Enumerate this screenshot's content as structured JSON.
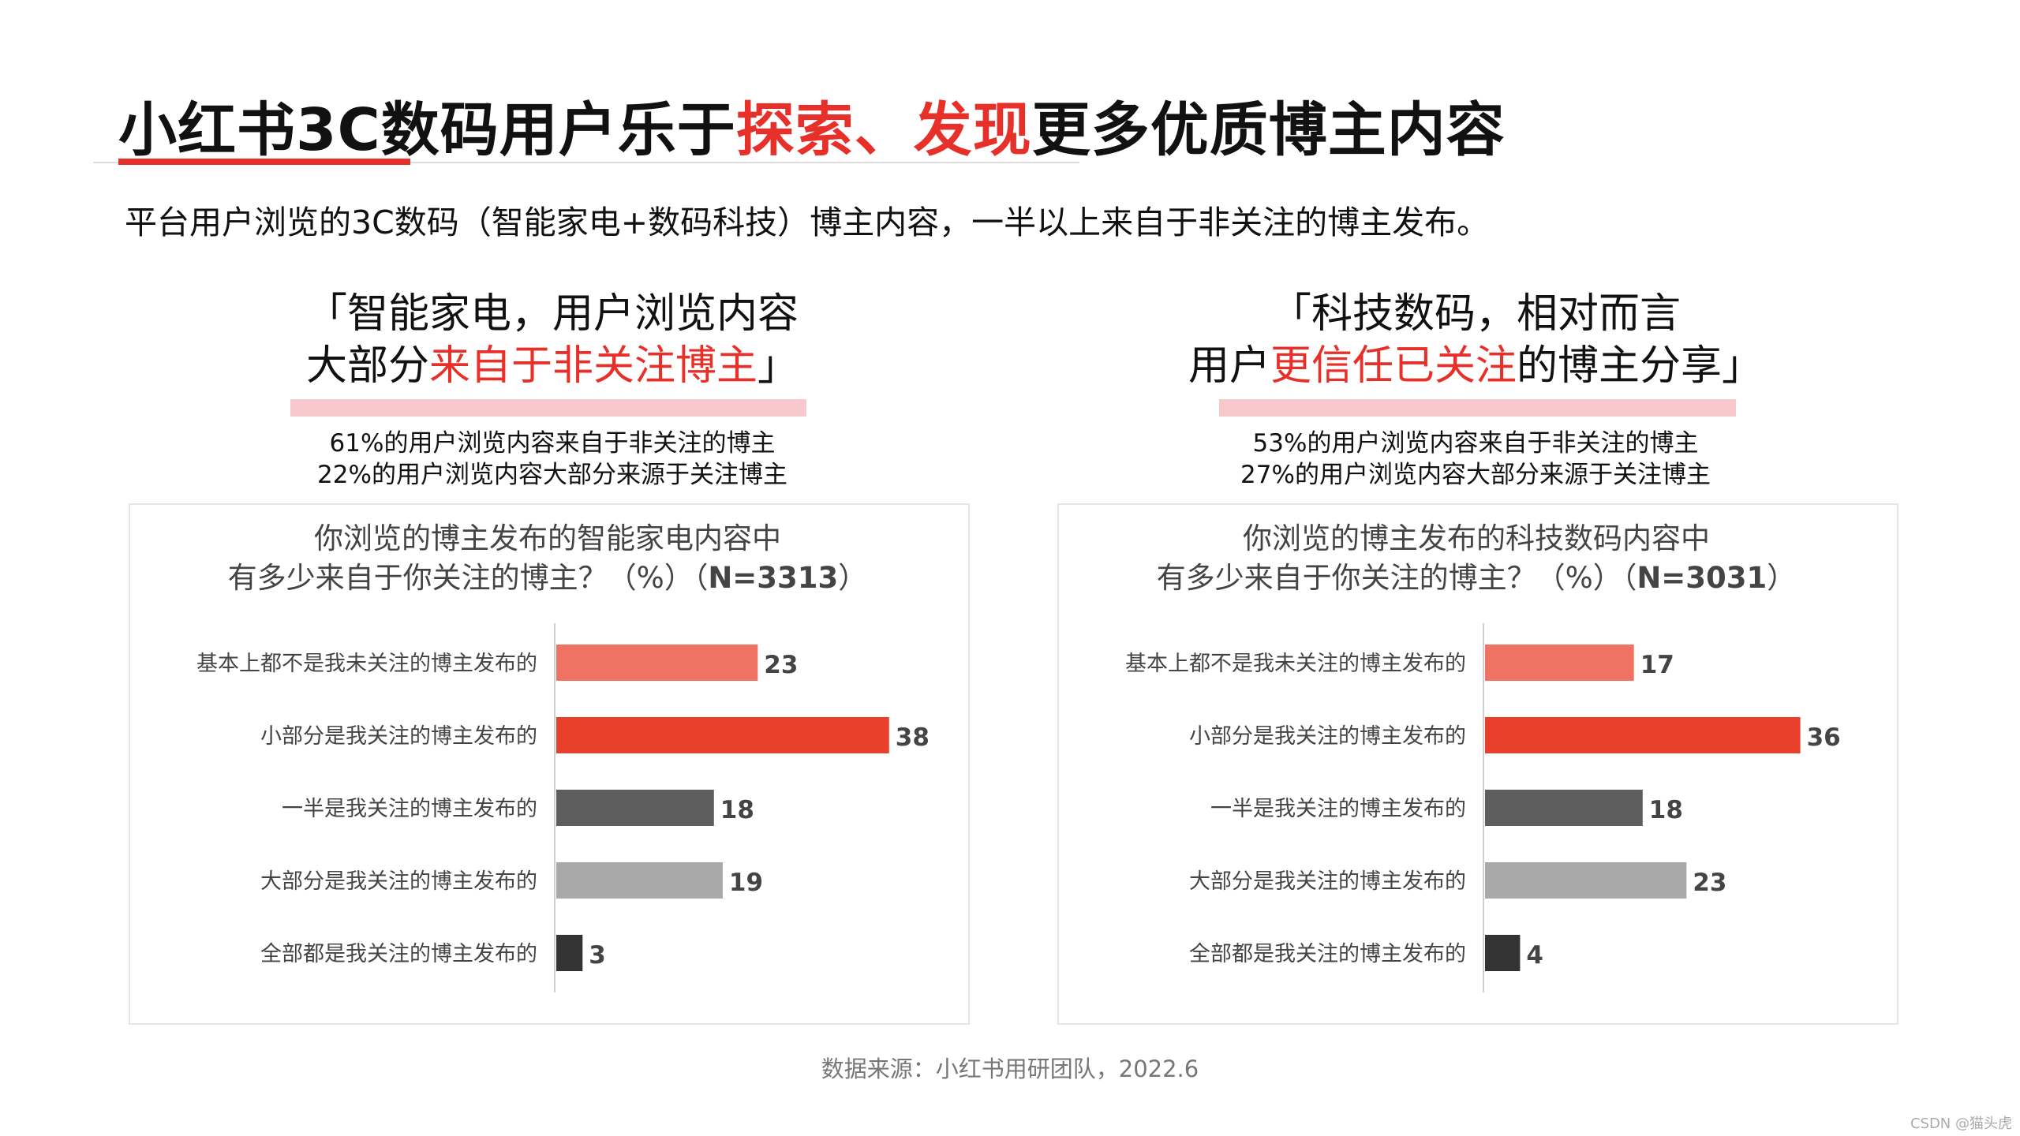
{
  "header": {
    "title_parts": [
      "小红书3C数码用户乐于",
      "探索、发现",
      "更多优质博主内容"
    ],
    "subtitle": "平台用户浏览的3C数码（智能家电+数码科技）博主内容，一半以上来自于非关注的博主发布。"
  },
  "left": {
    "quote_line1": "「智能家电，用户浏览内容",
    "quote_line2_pre": "大部分",
    "quote_line2_red": "来自于非关注博主",
    "quote_line2_post": "」",
    "stat1": "61%的用户浏览内容来自于非关注的博主",
    "stat2": "22%的用户浏览内容大部分来源于关注博主",
    "chart_title1": "你浏览的博主发布的智能家电内容中",
    "chart_title2_pre": "有多少来自于你关注的博主？（%）（",
    "chart_title2_n": "N=3313",
    "chart_title2_post": "）"
  },
  "right": {
    "quote_line1": "「科技数码，相对而言",
    "quote_line2_pre": "用户",
    "quote_line2_red": "更信任已关注",
    "quote_line2_post": "的博主分享」",
    "stat1": "53%的用户浏览内容来自于非关注的博主",
    "stat2": "27%的用户浏览内容大部分来源于关注博主",
    "chart_title1": "你浏览的博主发布的科技数码内容中",
    "chart_title2_pre": "有多少来自于你关注的博主？（%）（",
    "chart_title2_n": "N=3031",
    "chart_title2_post": "）"
  },
  "colors": [
    "#f07261",
    "#e8402b",
    "#5e5e5e",
    "#a9a9a9",
    "#333333"
  ],
  "chart_data": [
    {
      "type": "bar",
      "orientation": "horizontal",
      "categories": [
        "基本上都不是我未关注的博主发布的",
        "小部分是我关注的博主发布的",
        "一半是我关注的博主发布的",
        "大部分是我关注的博主发布的",
        "全部都是我关注的博主发布的"
      ],
      "values": [
        23,
        38,
        18,
        19,
        3
      ]
    },
    {
      "type": "bar",
      "orientation": "horizontal",
      "categories": [
        "基本上都不是我未关注的博主发布的",
        "小部分是我关注的博主发布的",
        "一半是我关注的博主发布的",
        "大部分是我关注的博主发布的",
        "全部都是我关注的博主发布的"
      ],
      "values": [
        17,
        36,
        18,
        23,
        4
      ]
    }
  ],
  "footer": {
    "source": "数据来源：小红书用研团队，2022.6",
    "watermark": "CSDN @猫头虎"
  }
}
